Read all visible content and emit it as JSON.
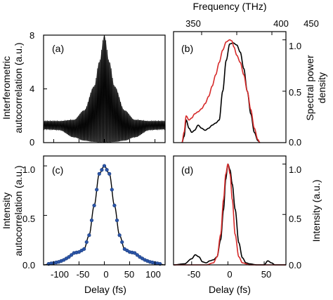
{
  "colors": {
    "black": "#000000",
    "red": "#d62a2a",
    "blue": "#2b55a8"
  },
  "chart_data": [
    {
      "panel": "(a)",
      "type": "line",
      "ylabel": "Interferometric autocorrelation (a.u.)",
      "xlim": [
        -120,
        120
      ],
      "ylim": [
        0,
        8
      ],
      "yticks": [
        "0",
        "4",
        "8"
      ],
      "series": [
        {
          "description_points": {
            "delay_fs": [
              -120,
              -90,
              -60,
              -40,
              -20,
              -10,
              0,
              10,
              20,
              40,
              60,
              90,
              120
            ],
            "upper_envelope": [
              1.6,
              1.6,
              1.7,
              2.4,
              4.2,
              6.0,
              8.0,
              6.0,
              4.2,
              2.4,
              1.7,
              1.6,
              1.6
            ],
            "lower_envelope": [
              1.0,
              0.95,
              0.4,
              0.15,
              0.05,
              0.02,
              0.0,
              0.02,
              0.05,
              0.15,
              0.4,
              0.95,
              1.0
            ]
          }
        }
      ]
    },
    {
      "panel": "(b)",
      "type": "line",
      "xlabel_top": "Frequency (THz)",
      "ylabel": "Spectral power density",
      "xlim": [
        310,
        470
      ],
      "xticks": [
        "350",
        "400",
        "450"
      ],
      "ylim": [
        0,
        1.08
      ],
      "yticks": [
        "0.0",
        "0.5",
        "1.0"
      ],
      "series": [
        {
          "color": "black",
          "x": [
            322,
            325,
            328,
            332,
            336,
            340,
            345,
            350,
            355,
            360,
            365,
            370,
            375,
            380,
            385,
            390,
            395,
            400,
            405,
            410,
            415,
            420,
            425,
            430,
            433
          ],
          "y": [
            0.0,
            0.06,
            0.22,
            0.14,
            0.1,
            0.12,
            0.17,
            0.14,
            0.12,
            0.14,
            0.17,
            0.19,
            0.22,
            0.5,
            0.8,
            0.96,
            0.97,
            0.95,
            0.88,
            0.72,
            0.5,
            0.28,
            0.1,
            0.02,
            0.0
          ]
        },
        {
          "color": "red",
          "x": [
            322,
            325,
            328,
            332,
            336,
            340,
            345,
            350,
            355,
            360,
            365,
            370,
            375,
            380,
            385,
            390,
            393,
            396,
            400,
            405,
            410,
            415,
            420,
            425,
            430,
            433
          ],
          "y": [
            0.0,
            0.1,
            0.26,
            0.22,
            0.24,
            0.28,
            0.3,
            0.33,
            0.38,
            0.45,
            0.55,
            0.66,
            0.78,
            0.9,
            0.98,
            1.0,
            0.99,
            0.93,
            0.85,
            0.78,
            0.66,
            0.5,
            0.32,
            0.14,
            0.03,
            0.0
          ]
        }
      ]
    },
    {
      "panel": "(c)",
      "type": "line",
      "xlabel": "Delay (fs)",
      "ylabel": "Intensity autocorrelation (a.u.)",
      "xlim": [
        -120,
        120
      ],
      "xticks": [
        "-100",
        "-50",
        "0",
        "50",
        "100"
      ],
      "ylim": [
        0,
        1.1
      ],
      "yticks": [
        "0.0",
        "0.5",
        "1.0"
      ],
      "series": [
        {
          "color": "blue",
          "style": "markers",
          "x": [
            -110,
            -100,
            -90,
            -80,
            -70,
            -60,
            -50,
            -40,
            -30,
            -20,
            -10,
            0,
            10,
            20,
            30,
            40,
            50,
            60,
            70,
            80,
            90,
            100,
            110
          ],
          "y": [
            0.01,
            0.02,
            0.03,
            0.05,
            0.08,
            0.12,
            0.13,
            0.16,
            0.3,
            0.6,
            0.92,
            1.0,
            0.92,
            0.6,
            0.3,
            0.16,
            0.13,
            0.12,
            0.08,
            0.05,
            0.03,
            0.02,
            0.01
          ]
        },
        {
          "color": "black",
          "style": "line",
          "x": [
            -120,
            -100,
            -90,
            -80,
            -70,
            -60,
            -50,
            -40,
            -30,
            -20,
            -10,
            0,
            10,
            20,
            30,
            40,
            50,
            60,
            70,
            80,
            90,
            100,
            120
          ],
          "y": [
            0.0,
            0.02,
            0.03,
            0.05,
            0.08,
            0.12,
            0.13,
            0.16,
            0.3,
            0.6,
            0.92,
            1.0,
            0.92,
            0.6,
            0.3,
            0.16,
            0.13,
            0.12,
            0.08,
            0.05,
            0.03,
            0.02,
            0.0
          ]
        }
      ]
    },
    {
      "panel": "(d)",
      "type": "line",
      "xlabel": "Delay (fs)",
      "ylabel": "Intensity (a.u.)",
      "xlim": [
        -75,
        80
      ],
      "xticks": [
        "-50",
        "0",
        "50"
      ],
      "ylim": [
        0,
        1.08
      ],
      "yticks": [
        "0.0",
        "0.5",
        "1.0"
      ],
      "series": [
        {
          "color": "black",
          "x": [
            -75,
            -60,
            -50,
            -45,
            -40,
            -35,
            -30,
            -25,
            -20,
            -15,
            -10,
            -6,
            -3,
            0,
            3,
            6,
            10,
            15,
            20,
            25,
            30,
            40,
            50,
            55,
            60,
            65,
            80
          ],
          "y": [
            0.0,
            0.01,
            0.06,
            0.1,
            0.08,
            0.03,
            0.02,
            0.04,
            0.05,
            0.08,
            0.25,
            0.55,
            0.85,
            1.0,
            0.94,
            0.8,
            0.55,
            0.22,
            0.07,
            0.02,
            0.01,
            0.0,
            0.0,
            0.04,
            0.02,
            0.0,
            0.0
          ]
        },
        {
          "color": "red",
          "x": [
            -75,
            -30,
            -20,
            -15,
            -10,
            -6,
            -3,
            0,
            3,
            6,
            10,
            15,
            20,
            30,
            80
          ],
          "y": [
            0.0,
            0.0,
            0.02,
            0.08,
            0.3,
            0.65,
            0.9,
            1.0,
            0.9,
            0.65,
            0.3,
            0.08,
            0.02,
            0.0,
            0.0
          ]
        }
      ]
    }
  ]
}
